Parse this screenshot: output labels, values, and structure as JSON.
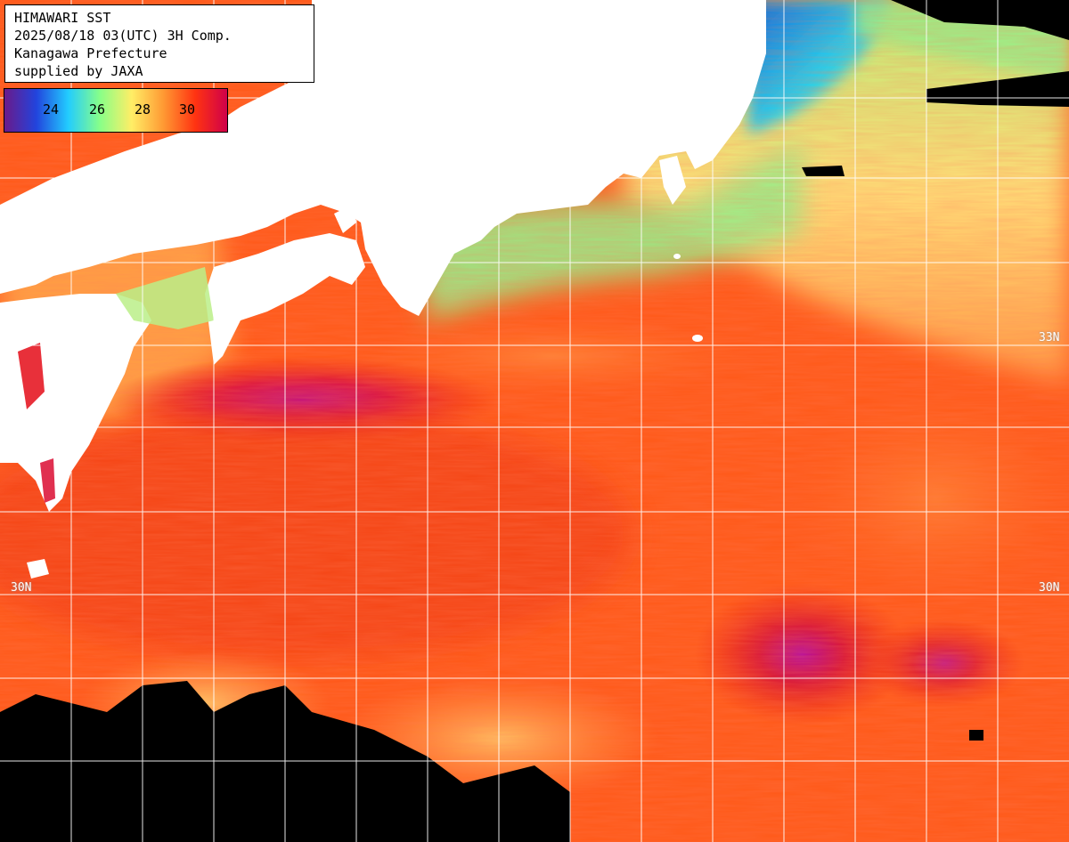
{
  "title": {
    "line1": "HIMAWARI SST",
    "line2": "2025/08/18 03(UTC) 3H Comp.",
    "line3": "Kanagawa Prefecture",
    "line4": "supplied by JAXA"
  },
  "legend": {
    "unit_ticks": [
      "24",
      "26",
      "28",
      "30"
    ],
    "colors": [
      "#6a1a8a",
      "#2244dd",
      "#22ccff",
      "#88ff88",
      "#ffee66",
      "#ff9933",
      "#ff3311",
      "#d0004a"
    ]
  },
  "grid": {
    "lat_labels_left": [
      "30N"
    ],
    "lat_labels_right": [
      "33N",
      "30N"
    ]
  },
  "colors": {
    "land": "#ffffff",
    "nodata": "#000000",
    "grid": "#ffffff",
    "warm": "#ff5a1a",
    "hot": "#ee2a10",
    "peak": "#c0108a",
    "cool": "#88ee88",
    "cold": "#22aaff"
  }
}
